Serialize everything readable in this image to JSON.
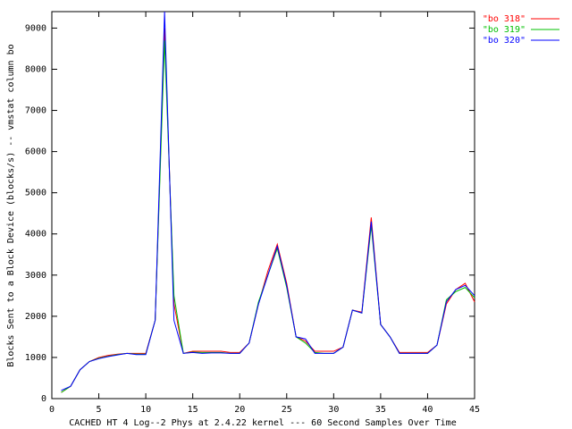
{
  "chart_data": {
    "type": "line",
    "x_label": "CACHED HT 4 Log--2 Phys at 2.4.22 kernel --- 60 Second Samples Over Time",
    "y_label": "Blocks Sent to a Block Device (blocks/s) -- vmstat column bo",
    "x": [
      1,
      2,
      3,
      4,
      5,
      6,
      7,
      8,
      9,
      10,
      11,
      12,
      13,
      14,
      15,
      16,
      17,
      18,
      19,
      20,
      21,
      22,
      23,
      24,
      25,
      26,
      27,
      28,
      29,
      30,
      31,
      32,
      33,
      34,
      35,
      36,
      37,
      38,
      39,
      40,
      41,
      42,
      43,
      44,
      45
    ],
    "series": [
      {
        "name": "\"bo 318\"",
        "color": "#ff0000",
        "values": [
          150,
          300,
          700,
          900,
          1000,
          1050,
          1080,
          1100,
          1100,
          1100,
          1900,
          9000,
          2300,
          1100,
          1150,
          1150,
          1150,
          1150,
          1120,
          1120,
          1350,
          2300,
          3100,
          3750,
          2800,
          1500,
          1400,
          1150,
          1150,
          1150,
          1250,
          2150,
          2100,
          4400,
          1800,
          1500,
          1120,
          1120,
          1120,
          1120,
          1300,
          2300,
          2650,
          2800,
          2350
        ]
      },
      {
        "name": "\"bo 319\"",
        "color": "#00c000",
        "values": [
          150,
          300,
          700,
          900,
          980,
          1030,
          1070,
          1100,
          1080,
          1080,
          1900,
          8700,
          2500,
          1100,
          1130,
          1120,
          1120,
          1120,
          1100,
          1100,
          1350,
          2350,
          3000,
          3650,
          2700,
          1500,
          1350,
          1120,
          1100,
          1100,
          1250,
          2150,
          2080,
          4200,
          1800,
          1500,
          1100,
          1100,
          1100,
          1100,
          1300,
          2400,
          2600,
          2700,
          2450
        ]
      },
      {
        "name": "\"bo 320\"",
        "color": "#0000ff",
        "values": [
          200,
          300,
          700,
          900,
          970,
          1020,
          1060,
          1100,
          1070,
          1070,
          1900,
          9400,
          1900,
          1100,
          1120,
          1100,
          1110,
          1110,
          1100,
          1100,
          1350,
          2300,
          3000,
          3700,
          2750,
          1500,
          1450,
          1100,
          1100,
          1100,
          1250,
          2150,
          2080,
          4300,
          1800,
          1500,
          1100,
          1100,
          1100,
          1100,
          1300,
          2350,
          2650,
          2750,
          2500
        ]
      }
    ],
    "xlim": [
      0,
      45
    ],
    "xticks": [
      0,
      5,
      10,
      15,
      20,
      25,
      30,
      35,
      40,
      45
    ],
    "ylim": [
      0,
      9400
    ],
    "yticks": [
      0,
      1000,
      2000,
      3000,
      4000,
      5000,
      6000,
      7000,
      8000,
      9000
    ],
    "legend": "top-right",
    "grid": false
  }
}
